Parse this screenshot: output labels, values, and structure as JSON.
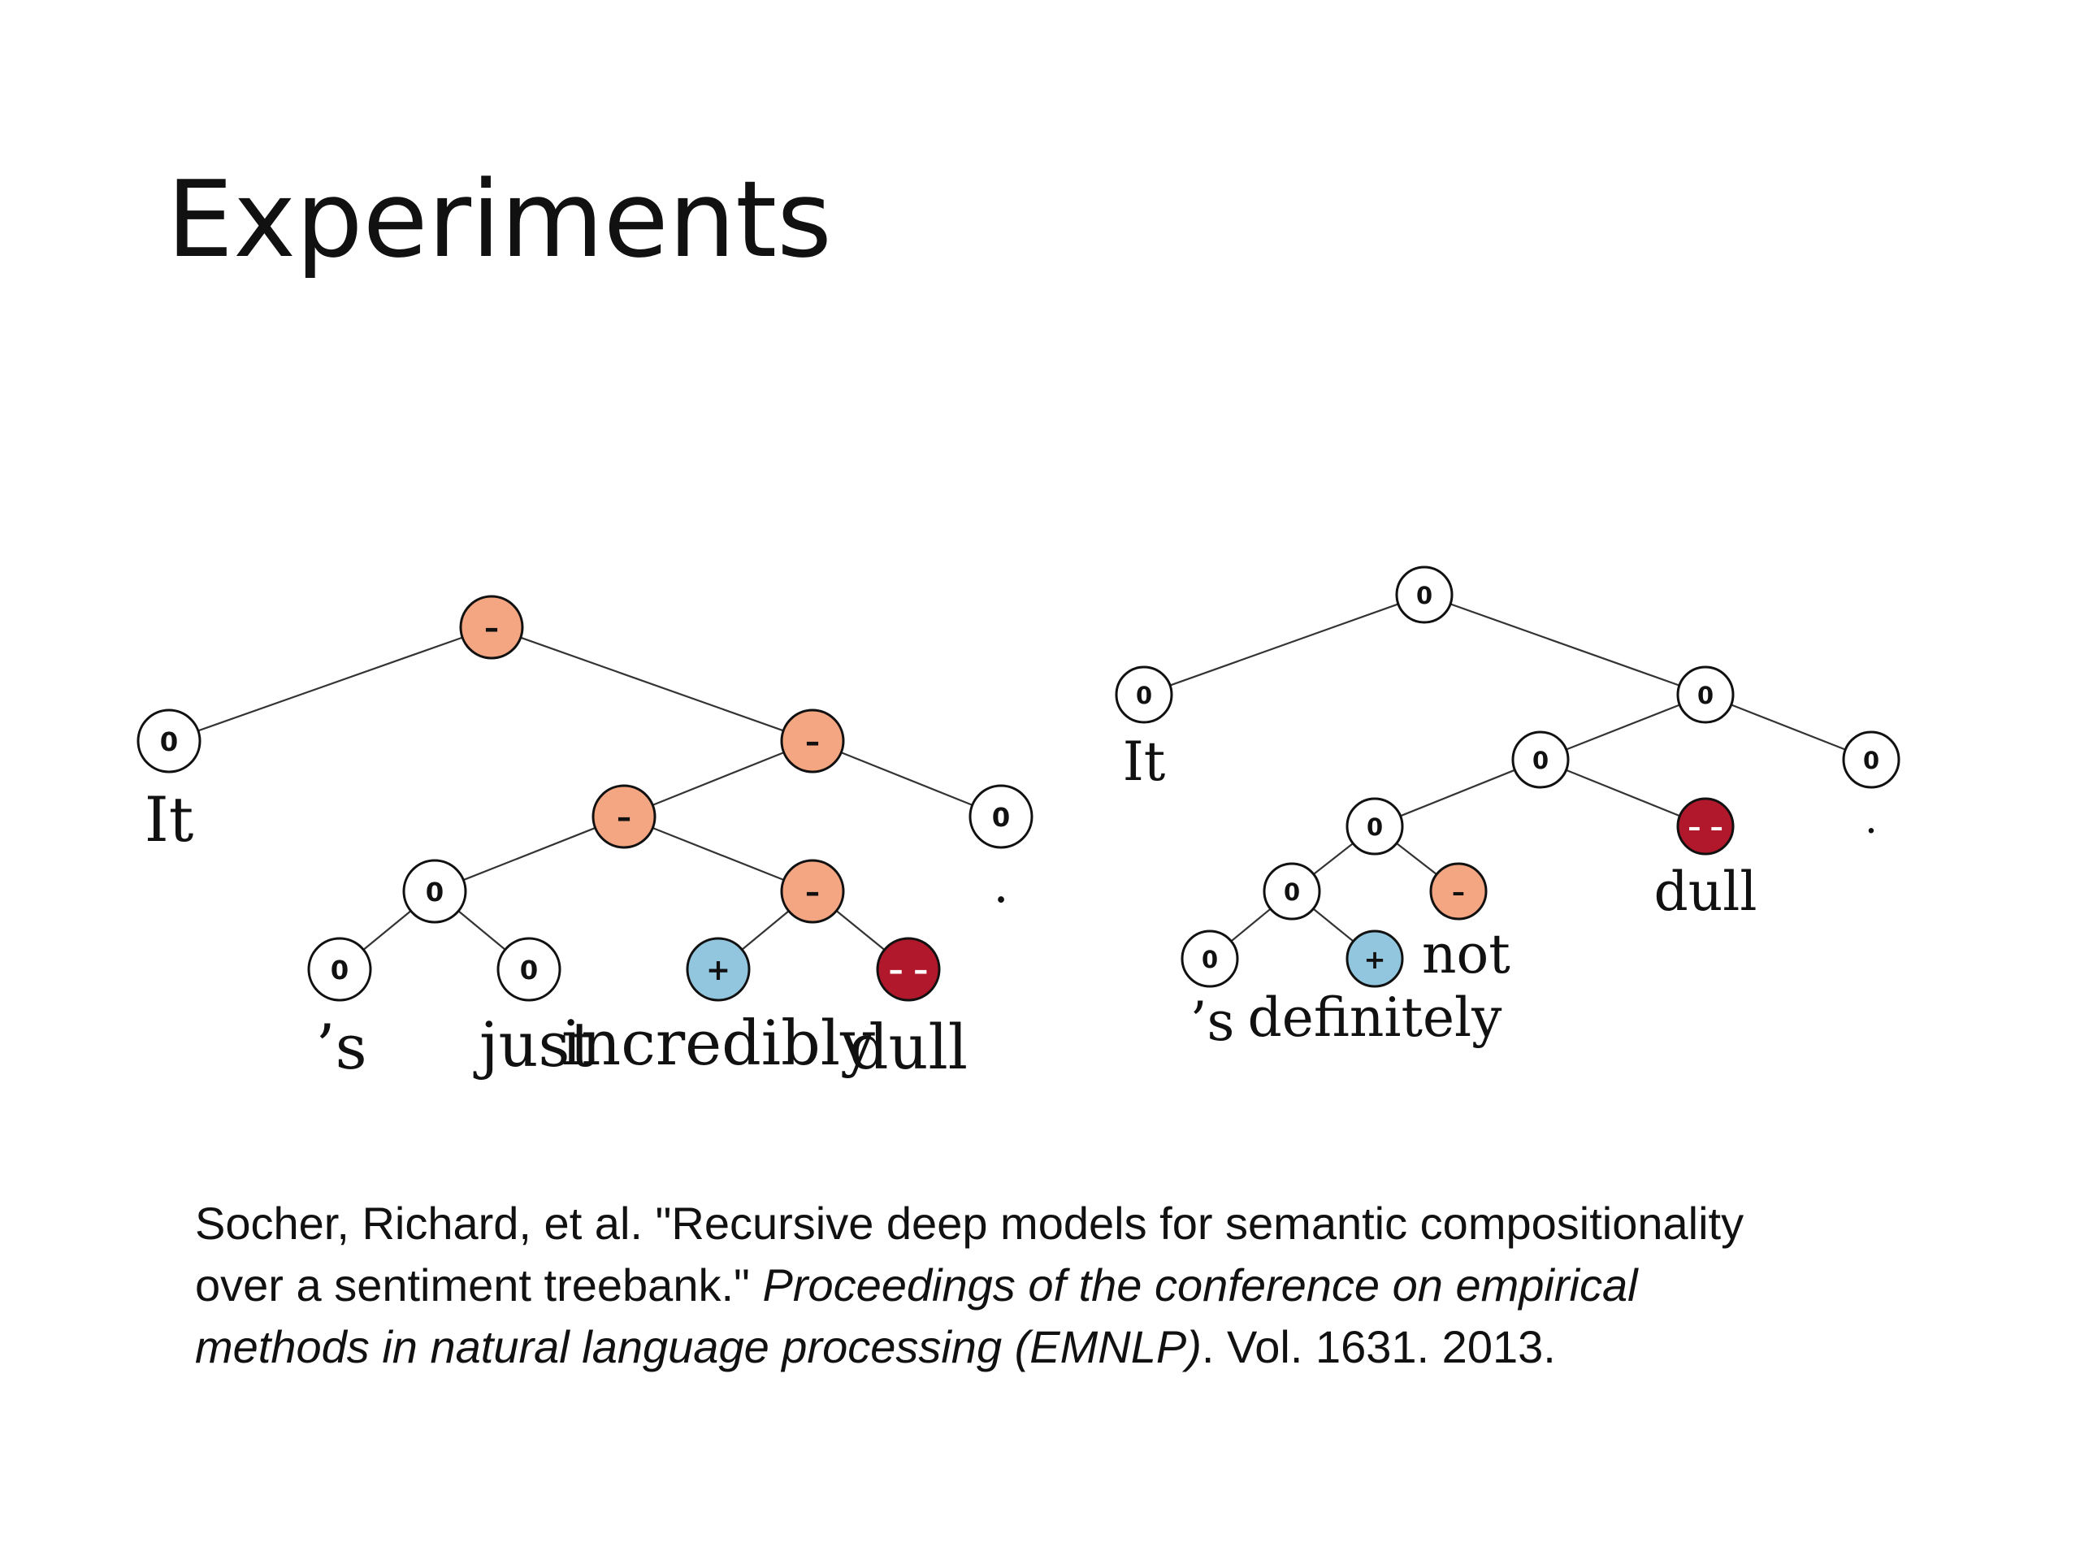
{
  "slide": {
    "title": "Experiments"
  },
  "colors": {
    "neutral": "#ffffff",
    "negative": "#f4a582",
    "very_negative": "#b2182b",
    "positive": "#92c5de"
  },
  "trees": [
    {
      "nodes": [
        {
          "id": "L1",
          "label": "–",
          "sentiment": "negative"
        },
        {
          "id": "L2",
          "label": "0",
          "sentiment": "neutral",
          "word": "It"
        },
        {
          "id": "L3",
          "label": "–",
          "sentiment": "negative"
        },
        {
          "id": "L4",
          "label": "–",
          "sentiment": "negative"
        },
        {
          "id": "L5",
          "label": "0",
          "sentiment": "neutral",
          "word": "."
        },
        {
          "id": "L6",
          "label": "0",
          "sentiment": "neutral"
        },
        {
          "id": "L7",
          "label": "–",
          "sentiment": "negative"
        },
        {
          "id": "L8",
          "label": "0",
          "sentiment": "neutral",
          "word": "’s"
        },
        {
          "id": "L9",
          "label": "0",
          "sentiment": "neutral",
          "word": "just"
        },
        {
          "id": "L10",
          "label": "+",
          "sentiment": "positive",
          "word": "incredibly"
        },
        {
          "id": "L11",
          "label": "– –",
          "sentiment": "very_negative",
          "word": "dull"
        }
      ],
      "edges": [
        [
          "L1",
          "L2"
        ],
        [
          "L1",
          "L3"
        ],
        [
          "L3",
          "L4"
        ],
        [
          "L3",
          "L5"
        ],
        [
          "L4",
          "L6"
        ],
        [
          "L4",
          "L7"
        ],
        [
          "L6",
          "L8"
        ],
        [
          "L6",
          "L9"
        ],
        [
          "L7",
          "L10"
        ],
        [
          "L7",
          "L11"
        ]
      ]
    },
    {
      "nodes": [
        {
          "id": "R1",
          "label": "0",
          "sentiment": "neutral"
        },
        {
          "id": "R2",
          "label": "0",
          "sentiment": "neutral",
          "word": "It"
        },
        {
          "id": "R3",
          "label": "0",
          "sentiment": "neutral"
        },
        {
          "id": "R4",
          "label": "0",
          "sentiment": "neutral"
        },
        {
          "id": "R5",
          "label": "0",
          "sentiment": "neutral",
          "word": "."
        },
        {
          "id": "R6",
          "label": "0",
          "sentiment": "neutral"
        },
        {
          "id": "R7",
          "label": "– –",
          "sentiment": "very_negative",
          "word": "dull"
        },
        {
          "id": "R8",
          "label": "0",
          "sentiment": "neutral"
        },
        {
          "id": "R9",
          "label": "–",
          "sentiment": "negative",
          "word": "not"
        },
        {
          "id": "R10",
          "label": "0",
          "sentiment": "neutral",
          "word": "’s"
        },
        {
          "id": "R11",
          "label": "+",
          "sentiment": "positive",
          "word": "definitely"
        }
      ],
      "edges": [
        [
          "R1",
          "R2"
        ],
        [
          "R1",
          "R3"
        ],
        [
          "R3",
          "R4"
        ],
        [
          "R3",
          "R5"
        ],
        [
          "R4",
          "R6"
        ],
        [
          "R4",
          "R7"
        ],
        [
          "R6",
          "R8"
        ],
        [
          "R6",
          "R9"
        ],
        [
          "R8",
          "R10"
        ],
        [
          "R8",
          "R11"
        ]
      ]
    }
  ],
  "citation": {
    "line1": "Socher, Richard, et al. \"Recursive deep models for semantic compositionality",
    "line2_plain": "over a sentiment treebank.\" ",
    "line2_italic": "Proceedings of the conference on empirical",
    "line3_italic": "methods in natural language processing (EMNLP)",
    "line3_plain": ". Vol. 1631. 2013."
  }
}
